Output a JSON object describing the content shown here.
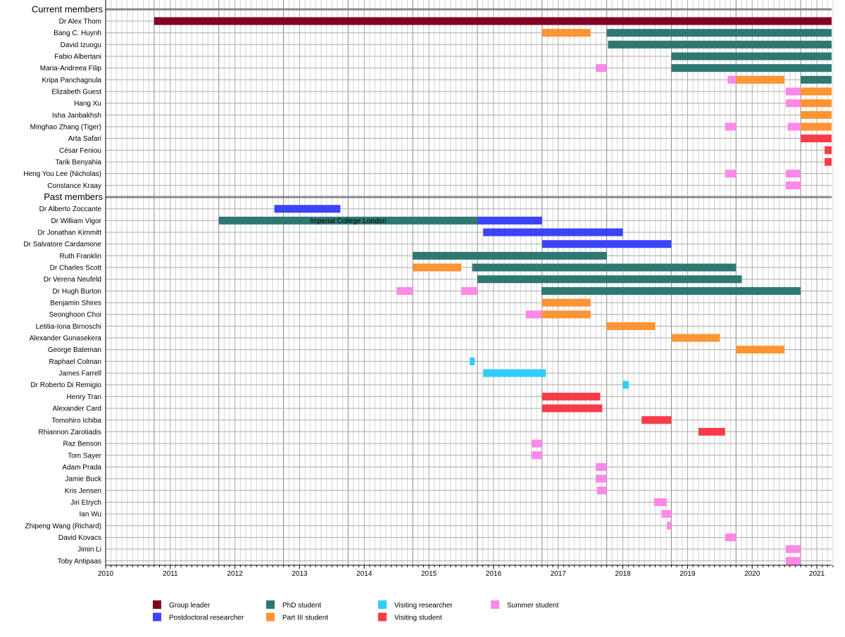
{
  "chart_data": {
    "type": "gantt",
    "xlim": [
      2010,
      2021.25
    ],
    "x_ticks": [
      "2010",
      "2011",
      "2012",
      "2013",
      "2014",
      "2015",
      "2016",
      "2017",
      "2018",
      "2019",
      "2020",
      "2021"
    ],
    "grid": true,
    "legend_placement": "bottom",
    "categories": {
      "group_leader": {
        "label": "Group leader",
        "color": "#7f0020"
      },
      "postdoc": {
        "label": "Postdoctoral researcher",
        "color": "#3b44f7"
      },
      "phd": {
        "label": "PhD student",
        "color": "#2f7872"
      },
      "part3": {
        "label": "Part III student",
        "color": "#ff9433"
      },
      "visiting_researcher": {
        "label": "Visiting researcher",
        "color": "#33ccff"
      },
      "visiting_student": {
        "label": "Visiting student",
        "color": "#f73b4a"
      },
      "summer": {
        "label": "Summer student",
        "color": "#ff88e8"
      }
    },
    "legend_order": [
      "group_leader",
      "postdoc",
      "phd",
      "part3",
      "visiting_researcher",
      "visiting_student",
      "summer"
    ],
    "groups": [
      {
        "title": "Current members",
        "members": [
          {
            "name": "Dr Alex Thom",
            "spans": [
              [
                "group_leader",
                2010.75,
                2021.25
              ]
            ]
          },
          {
            "name": "Bang C. Huynh",
            "spans": [
              [
                "part3",
                2016.75,
                2017.5
              ],
              [
                "phd",
                2017.75,
                2021.25
              ]
            ]
          },
          {
            "name": "David Izuogu",
            "spans": [
              [
                "phd",
                2017.77,
                2021.25
              ]
            ]
          },
          {
            "name": "Fabio Albertani",
            "spans": [
              [
                "phd",
                2018.75,
                2021.25
              ]
            ]
          },
          {
            "name": "Maria-Andreea Filip",
            "spans": [
              [
                "summer",
                2017.58,
                2017.75
              ],
              [
                "phd",
                2018.75,
                2021.25
              ]
            ]
          },
          {
            "name": "Kripa Panchagnula",
            "spans": [
              [
                "summer",
                2019.62,
                2019.75
              ],
              [
                "part3",
                2019.75,
                2020.5
              ],
              [
                "phd",
                2020.75,
                2021.25
              ]
            ]
          },
          {
            "name": "Elizabeth Guest",
            "spans": [
              [
                "summer",
                2020.52,
                2020.75
              ],
              [
                "part3",
                2020.75,
                2021.25
              ]
            ]
          },
          {
            "name": "Hang Xu",
            "spans": [
              [
                "summer",
                2020.52,
                2020.75
              ],
              [
                "part3",
                2020.75,
                2021.25
              ]
            ]
          },
          {
            "name": "Isha Janbakhsh",
            "spans": [
              [
                "part3",
                2020.75,
                2021.25
              ]
            ]
          },
          {
            "name": "Minghao Zhang (Tiger)",
            "spans": [
              [
                "summer",
                2019.58,
                2019.75
              ],
              [
                "summer",
                2020.55,
                2020.75
              ],
              [
                "part3",
                2020.75,
                2021.25
              ]
            ]
          },
          {
            "name": "Arta Safari",
            "spans": [
              [
                "visiting_student",
                2020.75,
                2021.25
              ]
            ]
          },
          {
            "name": "César Feniou",
            "spans": [
              [
                "visiting_student",
                2021.12,
                2021.25
              ]
            ]
          },
          {
            "name": "Tarik Benyahia",
            "spans": [
              [
                "visiting_student",
                2021.12,
                2021.25
              ]
            ]
          },
          {
            "name": "Heng You Lee (Nicholas)",
            "spans": [
              [
                "summer",
                2019.58,
                2019.75
              ],
              [
                "summer",
                2020.52,
                2020.75
              ]
            ]
          },
          {
            "name": "Constance Kraay",
            "spans": [
              [
                "summer",
                2020.52,
                2020.75
              ]
            ]
          }
        ]
      },
      {
        "title": "Past members",
        "members": [
          {
            "name": "Dr Alberto Zoccante",
            "spans": [
              [
                "postdoc",
                2012.61,
                2013.63
              ]
            ]
          },
          {
            "name": "Dr William Vigor",
            "spans": [
              [
                "phd",
                2011.75,
                2015.75
              ],
              [
                "postdoc",
                2015.75,
                2016.75
              ]
            ],
            "annotation": "Imperial College London"
          },
          {
            "name": "Dr Jonathan Kimmitt",
            "spans": [
              [
                "postdoc",
                2015.84,
                2018.0
              ]
            ]
          },
          {
            "name": "Dr Salvatore Cardamone",
            "spans": [
              [
                "postdoc",
                2016.75,
                2018.75
              ]
            ]
          },
          {
            "name": "Ruth Franklin",
            "spans": [
              [
                "phd",
                2014.75,
                2017.75
              ]
            ]
          },
          {
            "name": "Dr Charles Scott",
            "spans": [
              [
                "part3",
                2014.75,
                2015.5
              ],
              [
                "phd",
                2015.67,
                2019.75
              ]
            ]
          },
          {
            "name": "Dr Verena Neufeld",
            "spans": [
              [
                "phd",
                2015.75,
                2019.84
              ]
            ]
          },
          {
            "name": "Dr Hugh Burton",
            "spans": [
              [
                "summer",
                2014.5,
                2014.75
              ],
              [
                "summer",
                2015.5,
                2015.75
              ],
              [
                "phd",
                2016.74,
                2020.75
              ]
            ]
          },
          {
            "name": "Benjamin Shires",
            "spans": [
              [
                "part3",
                2016.75,
                2017.5
              ]
            ]
          },
          {
            "name": "Seonghoon Choi",
            "spans": [
              [
                "summer",
                2016.5,
                2016.75
              ],
              [
                "part3",
                2016.75,
                2017.5
              ]
            ]
          },
          {
            "name": "Letitia-Iona Birnoschi",
            "spans": [
              [
                "part3",
                2017.75,
                2018.5
              ]
            ]
          },
          {
            "name": "Alexander Gunasekera",
            "spans": [
              [
                "part3",
                2018.75,
                2019.5
              ]
            ]
          },
          {
            "name": "George Bateman",
            "spans": [
              [
                "part3",
                2019.75,
                2020.5
              ]
            ]
          },
          {
            "name": "Raphael Colman",
            "spans": [
              [
                "visiting_researcher",
                2015.63,
                2015.71
              ]
            ]
          },
          {
            "name": "James Farrell",
            "spans": [
              [
                "visiting_researcher",
                2015.84,
                2016.81
              ]
            ]
          },
          {
            "name": "Dr Roberto Di Remigio",
            "spans": [
              [
                "visiting_researcher",
                2018.0,
                2018.09
              ]
            ]
          },
          {
            "name": "Henry Tran",
            "spans": [
              [
                "visiting_student",
                2016.75,
                2017.65
              ]
            ]
          },
          {
            "name": "Alexander Card",
            "spans": [
              [
                "visiting_student",
                2016.75,
                2017.68
              ]
            ]
          },
          {
            "name": "Tomohiro Ichiba",
            "spans": [
              [
                "visiting_student",
                2018.29,
                2018.75
              ]
            ]
          },
          {
            "name": "Rhiannon Zarotiadis",
            "spans": [
              [
                "visiting_student",
                2019.17,
                2019.58
              ]
            ]
          },
          {
            "name": "Raz Benson",
            "spans": [
              [
                "summer",
                2016.59,
                2016.75
              ]
            ]
          },
          {
            "name": "Tom Sayer",
            "spans": [
              [
                "summer",
                2016.59,
                2016.75
              ]
            ]
          },
          {
            "name": "Adam Prada",
            "spans": [
              [
                "summer",
                2017.58,
                2017.75
              ]
            ]
          },
          {
            "name": "Jamie Buck",
            "spans": [
              [
                "summer",
                2017.58,
                2017.75
              ]
            ]
          },
          {
            "name": "Kris Jensen",
            "spans": [
              [
                "summer",
                2017.6,
                2017.75
              ]
            ]
          },
          {
            "name": "Jiri Etrych",
            "spans": [
              [
                "summer",
                2018.48,
                2018.68
              ]
            ]
          },
          {
            "name": "Ian Wu",
            "spans": [
              [
                "summer",
                2018.6,
                2018.75
              ]
            ]
          },
          {
            "name": "Zhipeng Wang (Richard)",
            "spans": [
              [
                "summer",
                2018.68,
                2018.75
              ]
            ]
          },
          {
            "name": "David Kovacs",
            "spans": [
              [
                "summer",
                2019.58,
                2019.75
              ]
            ]
          },
          {
            "name": "Jimin Li",
            "spans": [
              [
                "summer",
                2020.52,
                2020.75
              ]
            ]
          },
          {
            "name": "Toby Antipaas",
            "spans": [
              [
                "summer",
                2020.52,
                2020.75
              ]
            ]
          }
        ]
      }
    ]
  }
}
